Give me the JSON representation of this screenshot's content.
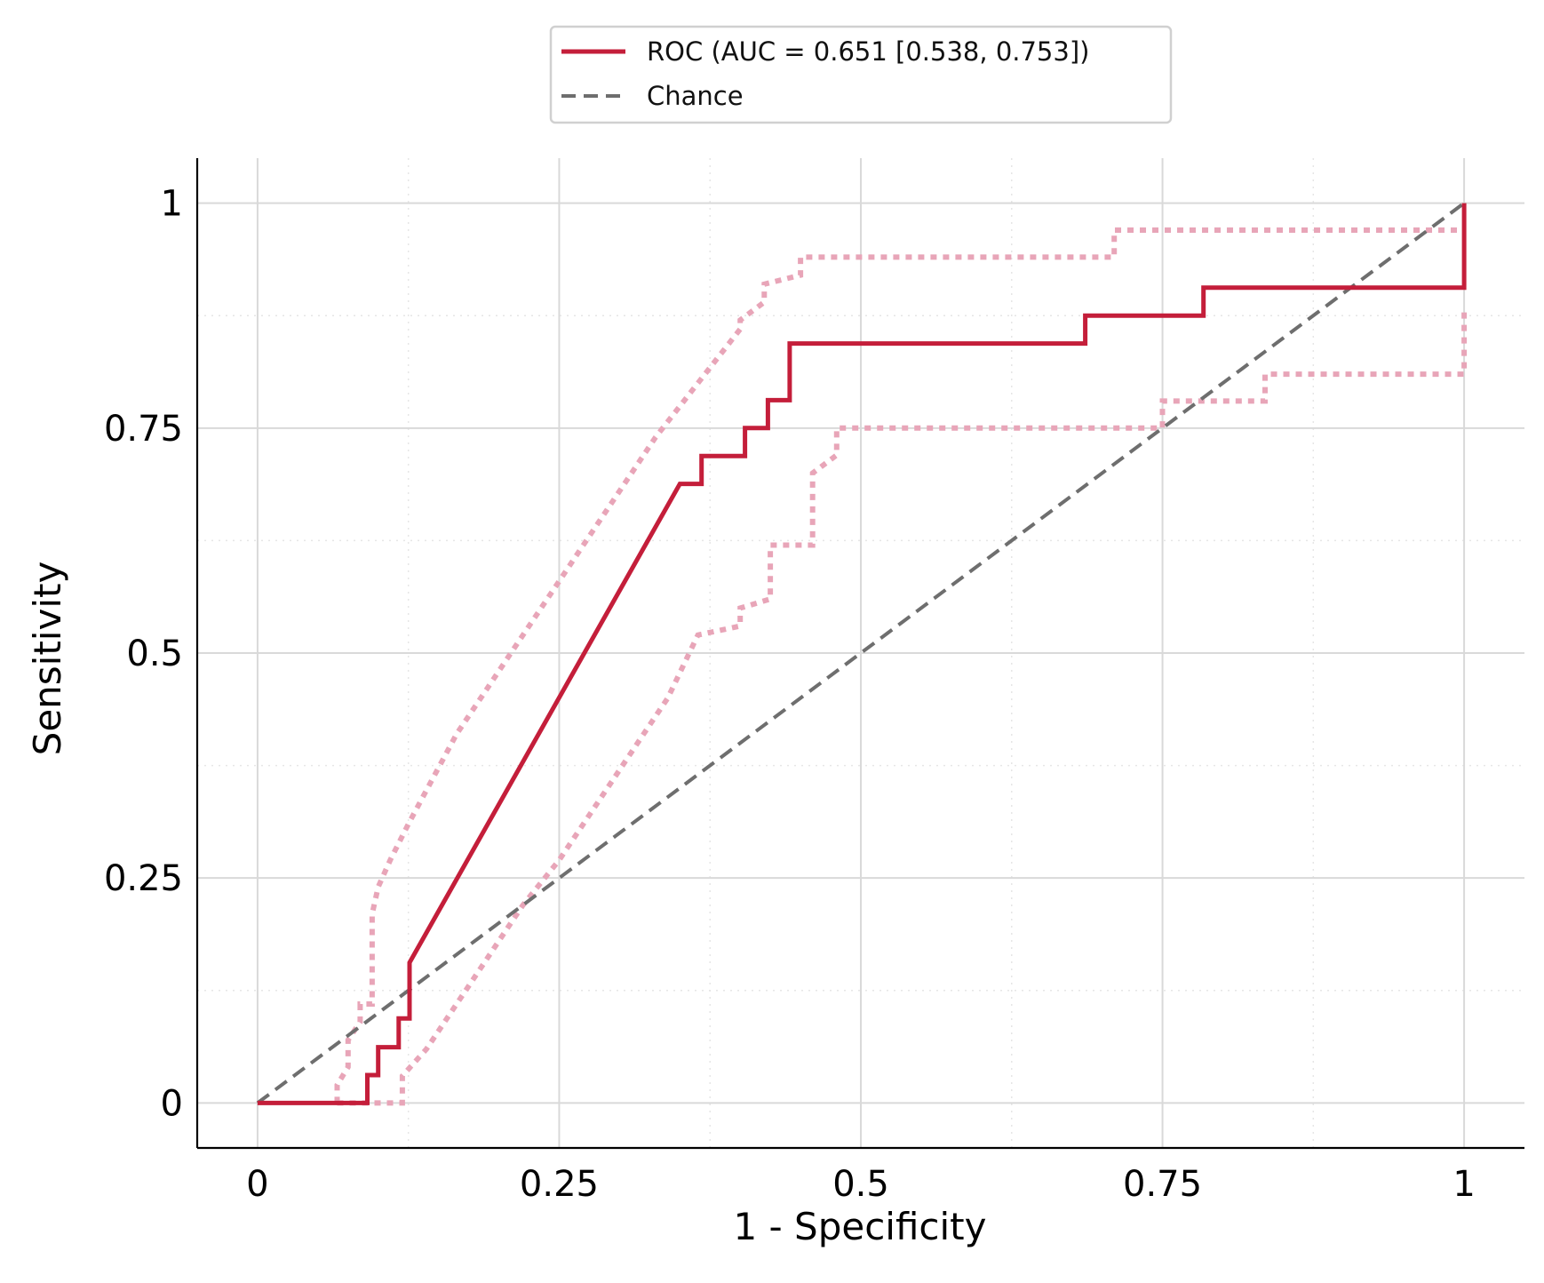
{
  "chart_data": {
    "type": "line",
    "xlabel": "1 - Specificity",
    "ylabel": "Sensitivity",
    "xlim": [
      -0.05,
      1.05
    ],
    "ylim": [
      -0.05,
      1.05
    ],
    "xticks": [
      0,
      0.25,
      0.5,
      0.75,
      1
    ],
    "xtick_labels": [
      "0",
      "0.25",
      "0.5",
      "0.75",
      "1"
    ],
    "yticks": [
      0,
      0.25,
      0.5,
      0.75,
      1
    ],
    "ytick_labels": [
      "0",
      "0.25",
      "0.5",
      "0.75",
      "1"
    ],
    "minor_ticks": [
      0.125,
      0.375,
      0.625,
      0.875
    ],
    "grid": true,
    "legend_position": "top-center (outside plot)",
    "legend": [
      {
        "label": "ROC (AUC = 0.651 [0.538, 0.753])",
        "style": "solid",
        "color": "#c41e3a"
      },
      {
        "label": "Chance",
        "style": "dashed",
        "color": "#6e6e6e"
      }
    ],
    "series": [
      {
        "name": "ROC (AUC = 0.651 [0.538, 0.753])",
        "color": "#c41e3a",
        "style": "solid",
        "x": [
          0,
          0.091,
          0.091,
          0.1,
          0.1,
          0.117,
          0.117,
          0.126,
          0.126,
          0.35,
          0.368,
          0.368,
          0.404,
          0.404,
          0.423,
          0.423,
          0.441,
          0.441,
          0.686,
          0.686,
          0.784,
          0.784,
          1.0,
          1.0
        ],
        "y": [
          0,
          0,
          0.031,
          0.031,
          0.062,
          0.062,
          0.094,
          0.094,
          0.156,
          0.688,
          0.688,
          0.719,
          0.719,
          0.75,
          0.75,
          0.781,
          0.781,
          0.844,
          0.844,
          0.875,
          0.875,
          0.906,
          0.906,
          1.0
        ]
      },
      {
        "name": "",
        "color": "#e8a5b8",
        "style": "dotted",
        "x": [
          0.066,
          0.066,
          0.075,
          0.075,
          0.085,
          0.085,
          0.095,
          0.095,
          0.1,
          0.11,
          0.125,
          0.145,
          0.165,
          0.19,
          0.21,
          0.23,
          0.25,
          0.27,
          0.3,
          0.33,
          0.365,
          0.4,
          0.4,
          0.42,
          0.42,
          0.45,
          0.45,
          0.71,
          0.71,
          1.0
        ],
        "y": [
          0,
          0.02,
          0.04,
          0.07,
          0.09,
          0.11,
          0.11,
          0.21,
          0.24,
          0.27,
          0.31,
          0.36,
          0.41,
          0.46,
          0.5,
          0.54,
          0.58,
          0.62,
          0.68,
          0.74,
          0.8,
          0.86,
          0.87,
          0.89,
          0.91,
          0.92,
          0.94,
          0.94,
          0.97,
          0.97
        ]
      },
      {
        "name": "",
        "color": "#e8a5b8",
        "style": "dotted",
        "x": [
          0.066,
          0.12,
          0.12,
          0.14,
          0.16,
          0.18,
          0.2,
          0.22,
          0.25,
          0.28,
          0.31,
          0.34,
          0.365,
          0.4,
          0.4,
          0.425,
          0.425,
          0.46,
          0.46,
          0.48,
          0.48,
          0.75,
          0.75,
          0.835,
          0.835,
          1.0,
          1.0
        ],
        "y": [
          0,
          0,
          0.03,
          0.06,
          0.1,
          0.14,
          0.18,
          0.22,
          0.27,
          0.33,
          0.39,
          0.45,
          0.52,
          0.53,
          0.55,
          0.56,
          0.62,
          0.62,
          0.7,
          0.72,
          0.75,
          0.75,
          0.78,
          0.78,
          0.81,
          0.81,
          0.88
        ]
      },
      {
        "name": "Chance",
        "color": "#6e6e6e",
        "style": "dashed",
        "x": [
          0,
          1
        ],
        "y": [
          0,
          1
        ]
      }
    ]
  }
}
